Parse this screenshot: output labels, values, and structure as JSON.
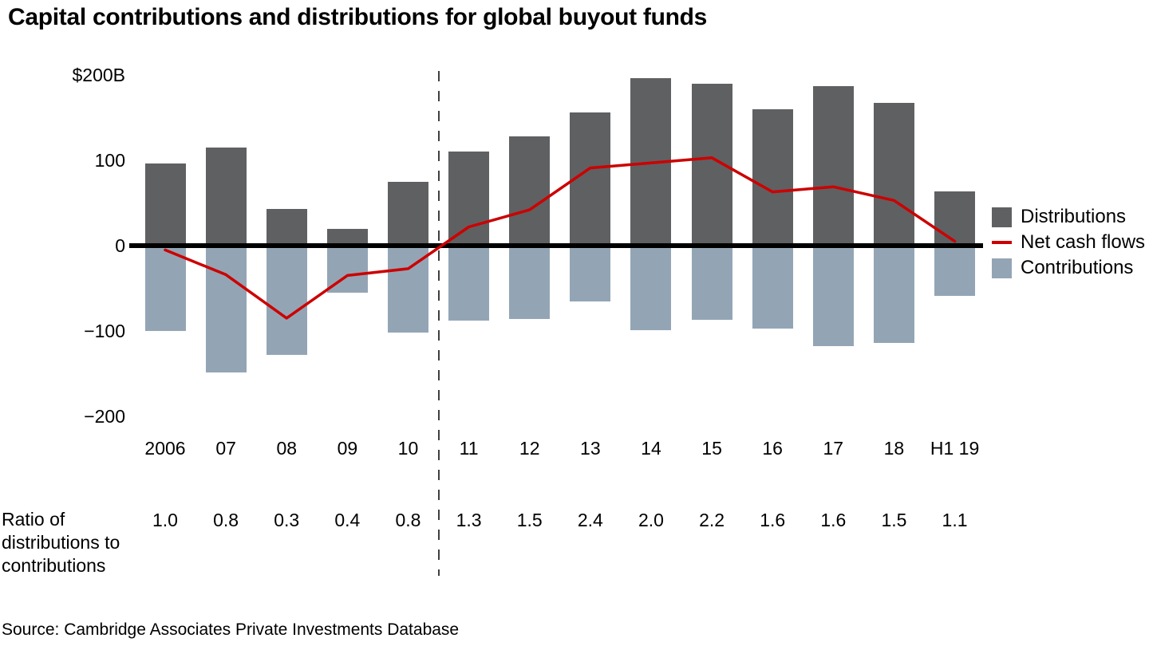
{
  "title": "Capital contributions and distributions for global buyout funds",
  "source": "Source: Cambridge Associates Private Investments Database",
  "ratio_row_label": "Ratio of distributions to contributions",
  "legend": {
    "distributions": "Distributions",
    "net_cash_flows": "Net cash flows",
    "contributions": "Contributions"
  },
  "colors": {
    "distributions": "#5f6062",
    "contributions": "#93a5b5",
    "net_line": "#cc0000",
    "baseline": "#000000",
    "separator": "#3f3f3f"
  },
  "chart_data": {
    "type": "bar",
    "title": "Capital contributions and distributions for global buyout funds",
    "unit": "$B",
    "categories": [
      "2006",
      "07",
      "08",
      "09",
      "10",
      "11",
      "12",
      "13",
      "14",
      "15",
      "16",
      "17",
      "18",
      "H1 19"
    ],
    "series": [
      {
        "name": "Distributions",
        "type": "bar",
        "values": [
          96,
          115,
          43,
          20,
          75,
          110,
          128,
          156,
          196,
          190,
          160,
          187,
          167,
          64
        ]
      },
      {
        "name": "Contributions",
        "type": "bar",
        "values": [
          -100,
          -149,
          -128,
          -55,
          -102,
          -88,
          -86,
          -65,
          -99,
          -87,
          -97,
          -118,
          -114,
          -59
        ]
      },
      {
        "name": "Net cash flows",
        "type": "line",
        "values": [
          -5,
          -34,
          -85,
          -35,
          -27,
          22,
          42,
          91,
          97,
          103,
          63,
          69,
          53,
          5
        ]
      }
    ],
    "ratios": [
      "1.0",
      "0.8",
      "0.3",
      "0.4",
      "0.8",
      "1.3",
      "1.5",
      "2.4",
      "2.0",
      "2.2",
      "1.6",
      "1.6",
      "1.5",
      "1.1"
    ],
    "y_axis": {
      "ticks": [
        {
          "label": "$200B",
          "value": 200
        },
        {
          "label": "100",
          "value": 100
        },
        {
          "label": "0",
          "value": 0
        },
        {
          "label": "−100",
          "value": -100
        },
        {
          "label": "−200",
          "value": -200
        }
      ],
      "range": [
        -200,
        200
      ]
    },
    "separator_between": [
      "10",
      "11"
    ],
    "grid": false,
    "legend_position": "right"
  }
}
